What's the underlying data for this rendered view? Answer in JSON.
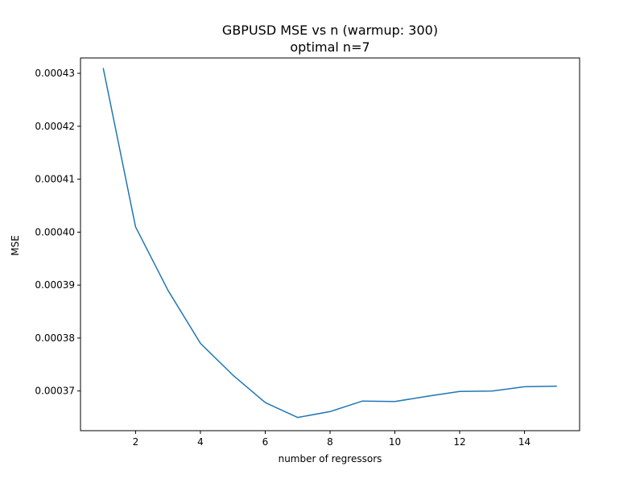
{
  "chart_data": {
    "type": "line",
    "title": "GBPUSD MSE vs n (warmup: 300)",
    "subtitle": "optimal n=7",
    "xlabel": "number of regressors",
    "ylabel": "MSE",
    "xlim": [
      0.3,
      15.7
    ],
    "ylim": [
      0.0003625,
      0.0004329
    ],
    "x_ticks": [
      2,
      4,
      6,
      8,
      10,
      12,
      14
    ],
    "x_tick_labels": [
      "2",
      "4",
      "6",
      "8",
      "10",
      "12",
      "14"
    ],
    "y_ticks": [
      0.00037,
      0.00038,
      0.00039,
      0.0004,
      0.00041,
      0.00042,
      0.00043
    ],
    "y_tick_labels": [
      "0.00037",
      "0.00038",
      "0.00039",
      "0.00040",
      "0.00041",
      "0.00042",
      "0.00043"
    ],
    "grid": false,
    "series": [
      {
        "color": "#1f77b4",
        "x": [
          1,
          2,
          3,
          4,
          5,
          6,
          7,
          8,
          9,
          10,
          11,
          12,
          13,
          14,
          15
        ],
        "values": [
          0.000431,
          0.000401,
          0.000389,
          0.000379,
          0.000373,
          0.0003678,
          0.000365,
          0.0003661,
          0.0003681,
          0.000368,
          0.000369,
          0.0003699,
          0.00037,
          0.0003708,
          0.0003709
        ]
      }
    ]
  }
}
